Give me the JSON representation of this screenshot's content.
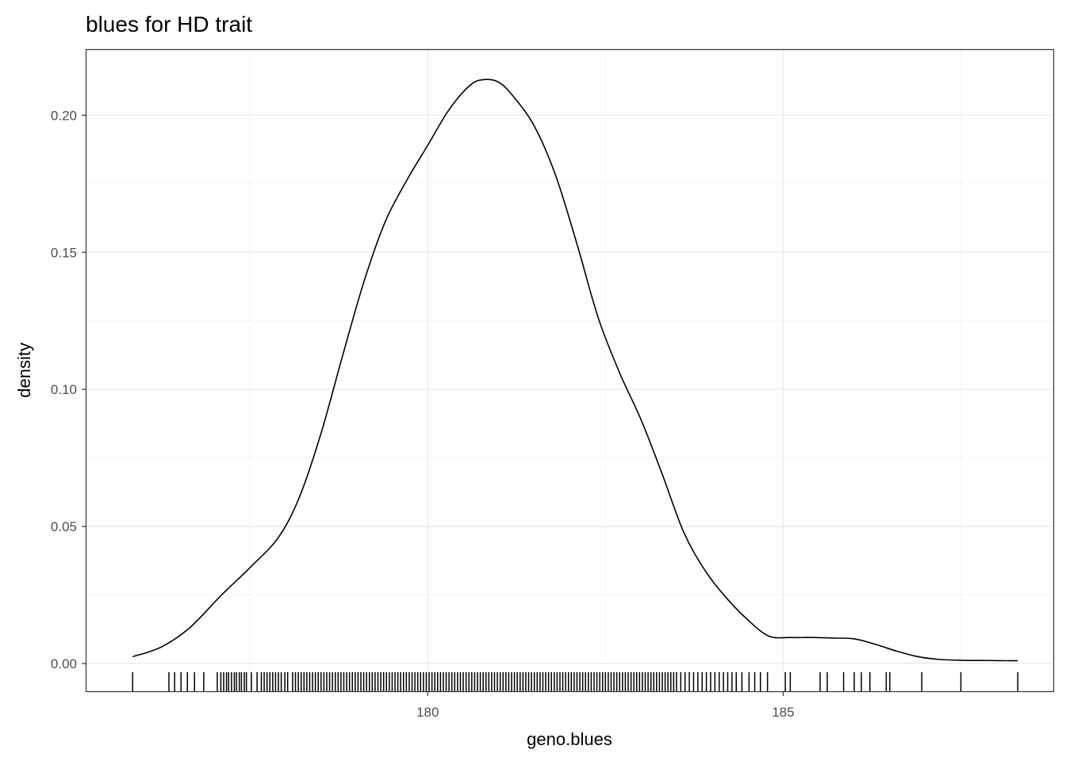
{
  "chart_data": {
    "type": "density",
    "title": "blues for HD trait",
    "xlabel": "geno.blues",
    "ylabel": "density",
    "xlim": [
      175.2,
      188.8
    ],
    "ylim": [
      -0.0101,
      0.2238
    ],
    "x_ticks": [
      180,
      185
    ],
    "x_tick_labels": [
      "180",
      "185"
    ],
    "y_ticks": [
      0.0,
      0.05,
      0.1,
      0.15,
      0.2
    ],
    "y_tick_labels": [
      "0.00",
      "0.05",
      "0.10",
      "0.15",
      "0.20"
    ],
    "grid": true,
    "theme": "bw",
    "line_color": "#000000",
    "density_curve": {
      "x": [
        175.85,
        176.25,
        176.65,
        177.1,
        177.5,
        177.9,
        178.2,
        178.5,
        178.8,
        179.1,
        179.4,
        179.7,
        180.0,
        180.3,
        180.6,
        180.8,
        181.0,
        181.2,
        181.5,
        181.8,
        182.1,
        182.4,
        182.7,
        183.0,
        183.3,
        183.6,
        183.9,
        184.2,
        184.5,
        184.8,
        185.1,
        185.4,
        185.7,
        186.0,
        186.3,
        186.6,
        186.9,
        187.2,
        187.5,
        187.9,
        188.3
      ],
      "y": [
        0.0025,
        0.006,
        0.013,
        0.025,
        0.035,
        0.046,
        0.061,
        0.084,
        0.112,
        0.139,
        0.161,
        0.176,
        0.189,
        0.202,
        0.211,
        0.213,
        0.212,
        0.207,
        0.196,
        0.178,
        0.153,
        0.126,
        0.106,
        0.089,
        0.069,
        0.048,
        0.034,
        0.024,
        0.016,
        0.01,
        0.0095,
        0.0095,
        0.0093,
        0.009,
        0.007,
        0.0045,
        0.0025,
        0.0015,
        0.0012,
        0.0011,
        0.001
      ]
    },
    "rug_x": [
      175.85,
      176.36,
      176.44,
      176.53,
      176.62,
      176.72,
      176.85,
      177.04,
      177.09,
      177.13,
      177.17,
      177.2,
      177.24,
      177.28,
      177.31,
      177.35,
      177.38,
      177.42,
      177.45,
      177.52,
      177.6,
      177.66,
      177.7,
      177.74,
      177.78,
      177.82,
      177.86,
      177.9,
      177.94,
      177.99,
      178.03,
      178.1,
      178.14,
      178.18,
      178.22,
      178.26,
      178.3,
      178.34,
      178.38,
      178.42,
      178.46,
      178.5,
      178.54,
      178.58,
      178.62,
      178.66,
      178.7,
      178.74,
      178.78,
      178.82,
      178.86,
      178.9,
      178.94,
      178.98,
      179.02,
      179.06,
      179.1,
      179.14,
      179.18,
      179.22,
      179.26,
      179.3,
      179.34,
      179.38,
      179.42,
      179.46,
      179.5,
      179.54,
      179.58,
      179.62,
      179.66,
      179.7,
      179.74,
      179.78,
      179.82,
      179.86,
      179.9,
      179.94,
      179.98,
      180.02,
      180.06,
      180.1,
      180.14,
      180.18,
      180.22,
      180.26,
      180.3,
      180.34,
      180.38,
      180.42,
      180.46,
      180.5,
      180.54,
      180.58,
      180.62,
      180.66,
      180.7,
      180.74,
      180.78,
      180.82,
      180.86,
      180.9,
      180.94,
      180.98,
      181.02,
      181.06,
      181.1,
      181.14,
      181.18,
      181.22,
      181.26,
      181.3,
      181.34,
      181.38,
      181.42,
      181.46,
      181.5,
      181.54,
      181.58,
      181.62,
      181.66,
      181.7,
      181.74,
      181.78,
      181.82,
      181.86,
      181.9,
      181.94,
      181.98,
      182.02,
      182.06,
      182.1,
      182.14,
      182.18,
      182.22,
      182.26,
      182.3,
      182.34,
      182.38,
      182.42,
      182.46,
      182.5,
      182.54,
      182.58,
      182.62,
      182.66,
      182.7,
      182.74,
      182.78,
      182.82,
      182.86,
      182.9,
      182.94,
      182.98,
      183.02,
      183.06,
      183.1,
      183.14,
      183.18,
      183.22,
      183.26,
      183.3,
      183.34,
      183.38,
      183.42,
      183.46,
      183.5,
      183.56,
      183.62,
      183.68,
      183.74,
      183.8,
      183.86,
      183.92,
      183.98,
      184.04,
      184.1,
      184.16,
      184.22,
      184.28,
      184.34,
      184.42,
      184.52,
      184.6,
      184.68,
      184.78,
      185.03,
      185.1,
      185.52,
      185.62,
      185.85,
      186.0,
      186.1,
      186.22,
      186.45,
      186.5,
      186.95,
      187.5,
      188.3
    ]
  }
}
